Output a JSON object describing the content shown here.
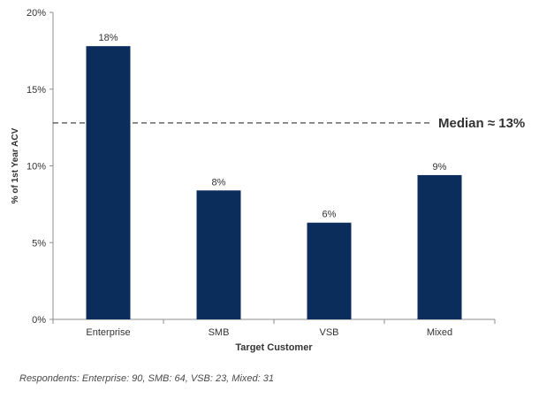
{
  "chart_data": {
    "type": "bar",
    "categories": [
      "Enterprise",
      "SMB",
      "VSB",
      "Mixed"
    ],
    "values": [
      17.8,
      8.4,
      6.3,
      9.4
    ],
    "data_labels": [
      "18%",
      "8%",
      "6%",
      "9%"
    ],
    "title": "",
    "xlabel": "Target Customer",
    "ylabel": "% of 1st Year ACV",
    "ylim": [
      0,
      20
    ],
    "yticks": [
      0,
      5,
      10,
      15,
      20
    ],
    "ytick_labels": [
      "0%",
      "5%",
      "10%",
      "15%",
      "20%"
    ],
    "reference_line": {
      "value": 12.8,
      "label": "Median ≈ 13%",
      "style": "dashed"
    },
    "grid": false,
    "bar_color": "#0b2d5c"
  },
  "footnote": "Respondents: Enterprise: 90, SMB: 64, VSB: 23, Mixed: 31"
}
